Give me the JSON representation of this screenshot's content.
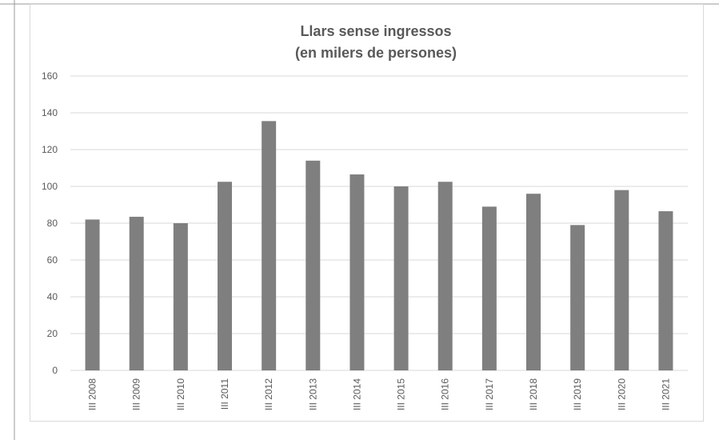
{
  "chart_data": {
    "type": "bar",
    "title": "Llars sense ingressos",
    "subtitle": "(en milers de persones)",
    "categories": [
      "III 2008",
      "III 2009",
      "III 2010",
      "III 2011",
      "III 2012",
      "III 2013",
      "III 2014",
      "III 2015",
      "III 2016",
      "III 2017",
      "III 2018",
      "III 2019",
      "III 2020",
      "III 2021"
    ],
    "values": [
      82,
      83.5,
      80,
      102.5,
      135.5,
      114,
      106.5,
      100,
      102.5,
      89,
      96,
      79,
      98,
      86.5
    ],
    "color": "#7f7f7f",
    "ylim": [
      0,
      160
    ],
    "yticks": [
      0,
      20,
      40,
      60,
      80,
      100,
      120,
      140,
      160
    ],
    "grid": true
  }
}
